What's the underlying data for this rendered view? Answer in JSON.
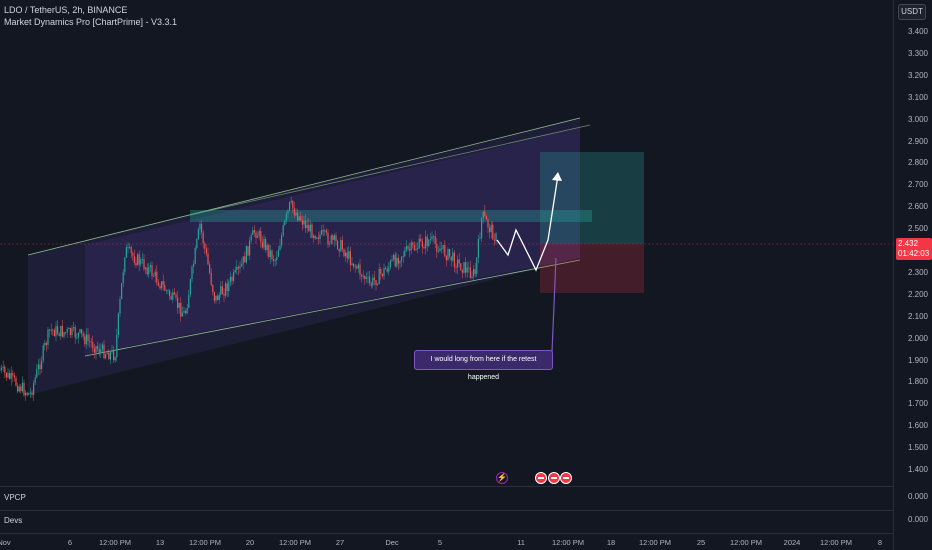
{
  "legend": {
    "symbol": "LDO / TetherUS, 2h, BINANCE",
    "indicator": "Market Dynamics Pro [ChartPrime] - V3.3.1"
  },
  "currency": "USDT",
  "current_price": {
    "price": "2.432",
    "countdown": "01:42:03"
  },
  "price_ticks": [
    "3.400",
    "3.300",
    "3.200",
    "3.100",
    "3.000",
    "2.900",
    "2.800",
    "2.700",
    "2.600",
    "2.500",
    "2.400",
    "2.300",
    "2.200",
    "2.100",
    "2.000",
    "1.900",
    "1.800",
    "1.700",
    "1.600",
    "1.500",
    "1.400"
  ],
  "time_ticks": [
    "Nov",
    "6",
    "12:00 PM",
    "13",
    "12:00 PM",
    "20",
    "12:00 PM",
    "27",
    "Dec",
    "5",
    "11",
    "12:00 PM",
    "18",
    "12:00 PM",
    "25",
    "12:00 PM",
    "2024",
    "12:00 PM",
    "8"
  ],
  "annotation": "I would long from here if the retest happened",
  "panes": [
    {
      "title": "VPCP",
      "value": "0.000"
    },
    {
      "title": "Devs",
      "value": "0.000"
    }
  ],
  "colors": {
    "background": "#131722",
    "up": "#26a69a",
    "down": "#ef5350",
    "channel": "#7e57c2",
    "target_zone": "#26a69a",
    "stop_zone": "#f23645"
  }
}
